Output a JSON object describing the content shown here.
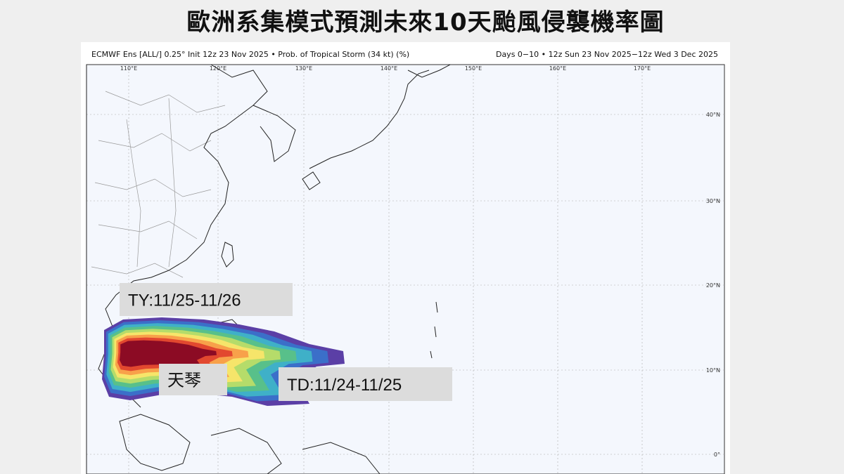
{
  "title": "歐洲系集模式預測未來10天颱風侵襲機率圖",
  "header": {
    "left": "ECMWF Ens [ALL/] 0.25° Init 12z 23 Nov 2025 • Prob. of Tropical Storm (34 kt) (%)",
    "right": "Days 0−10 • 12z Sun 23 Nov 2025−12z Wed 3 Dec 2025"
  },
  "map": {
    "lon_labels": [
      "110°E",
      "120°E",
      "130°E",
      "140°E",
      "150°E",
      "160°E",
      "170°E"
    ],
    "lat_labels": [
      "40°N",
      "30°N",
      "20°N",
      "10°N",
      "0°"
    ]
  },
  "annotations": [
    "TY:11/25-11/26",
    "天琴",
    "TD:11/24-11/25"
  ]
}
